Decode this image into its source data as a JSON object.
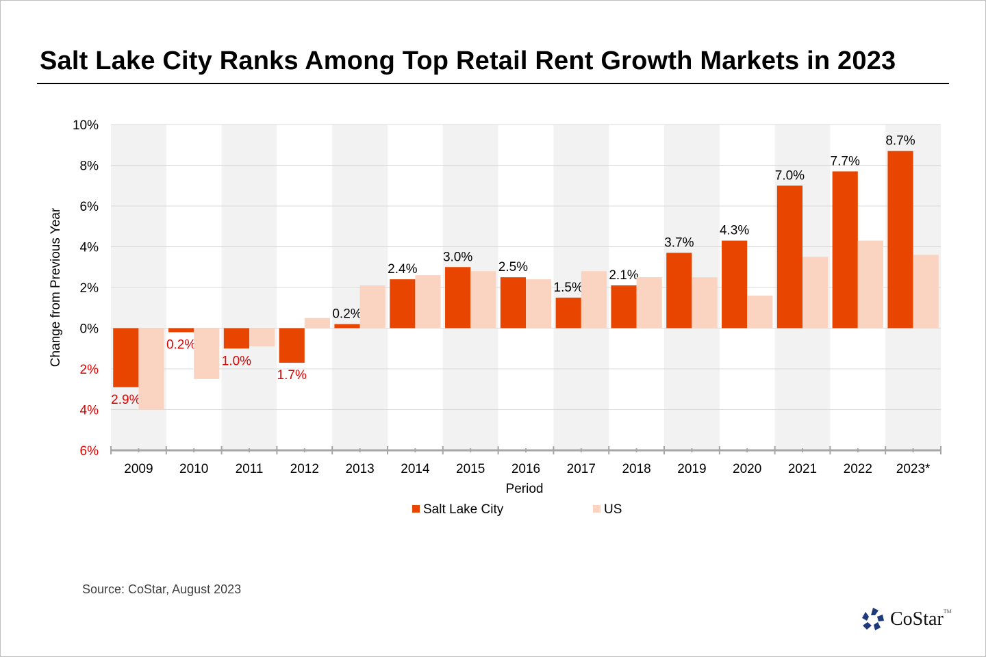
{
  "title": "Salt Lake City Ranks Among Top Retail Rent Growth Markets in 2023",
  "source": "Source: CoStar, August 2023",
  "logo": "CoStar",
  "chart_data": {
    "type": "bar",
    "title": "Salt Lake City Ranks Among Top Retail Rent Growth Markets in 2023",
    "xlabel": "Period",
    "ylabel": "Change  from Previous Year",
    "ylim": [
      -6,
      10
    ],
    "yticks": [
      10,
      8,
      6,
      4,
      2,
      0,
      -2,
      -4,
      -6
    ],
    "ytick_labels": [
      "10%",
      "8%",
      "6%",
      "4%",
      "2%",
      "0%",
      "2%",
      "4%",
      "6%"
    ],
    "categories": [
      "2009",
      "2010",
      "2011",
      "2012",
      "2013",
      "2014",
      "2015",
      "2016",
      "2017",
      "2018",
      "2019",
      "2020",
      "2021",
      "2022",
      "2023*"
    ],
    "series": [
      {
        "name": "Salt Lake City",
        "color": "#e84600",
        "values": [
          -2.9,
          -0.2,
          -1.0,
          -1.7,
          0.2,
          2.4,
          3.0,
          2.5,
          1.5,
          2.1,
          3.7,
          4.3,
          7.0,
          7.7,
          8.7
        ],
        "labels": [
          "2.9%",
          "0.2%",
          "1.0%",
          "1.7%",
          "0.2%",
          "2.4%",
          "3.0%",
          "2.5%",
          "1.5%",
          "2.1%",
          "3.7%",
          "4.3%",
          "7.0%",
          "7.7%",
          "8.7%"
        ]
      },
      {
        "name": "US",
        "color": "#fad4c1",
        "values": [
          -4.0,
          -2.5,
          -0.9,
          0.5,
          2.1,
          2.6,
          2.8,
          2.4,
          2.8,
          2.5,
          2.5,
          1.6,
          3.5,
          4.3,
          3.6
        ]
      }
    ],
    "negative_color": "#e00000",
    "grid": true,
    "legend": "bottom"
  }
}
